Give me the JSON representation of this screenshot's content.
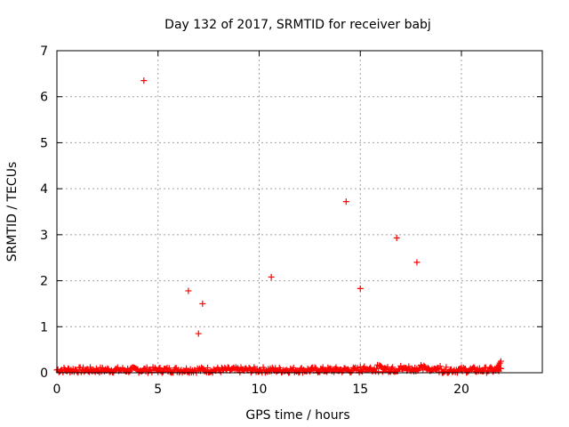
{
  "chart_data": {
    "type": "scatter",
    "title": "Day 132 of 2017, SRMTID for receiver babj",
    "xlabel": "GPS time / hours",
    "ylabel": "SRMTID / TECUs",
    "xlim": [
      0,
      24
    ],
    "ylim": [
      0,
      7
    ],
    "xticks": [
      0,
      5,
      10,
      15,
      20
    ],
    "yticks": [
      0,
      1,
      2,
      3,
      4,
      5,
      6,
      7
    ],
    "grid": true,
    "marker": "+",
    "color": "#ff0000",
    "series": [
      {
        "name": "SRMTID",
        "outliers": [
          {
            "x": 4.3,
            "y": 6.35
          },
          {
            "x": 6.5,
            "y": 1.78
          },
          {
            "x": 7.0,
            "y": 0.85
          },
          {
            "x": 7.2,
            "y": 1.5
          },
          {
            "x": 10.6,
            "y": 2.08
          },
          {
            "x": 14.3,
            "y": 3.72
          },
          {
            "x": 15.0,
            "y": 1.83
          },
          {
            "x": 16.8,
            "y": 2.93
          },
          {
            "x": 17.8,
            "y": 2.4
          }
        ],
        "baseline": {
          "x_start": 0.0,
          "x_end": 21.95,
          "x_step": 0.05,
          "typical_range": [
            0.0,
            0.12
          ],
          "end_rise": {
            "x": 21.9,
            "y": 0.25
          }
        }
      }
    ]
  }
}
